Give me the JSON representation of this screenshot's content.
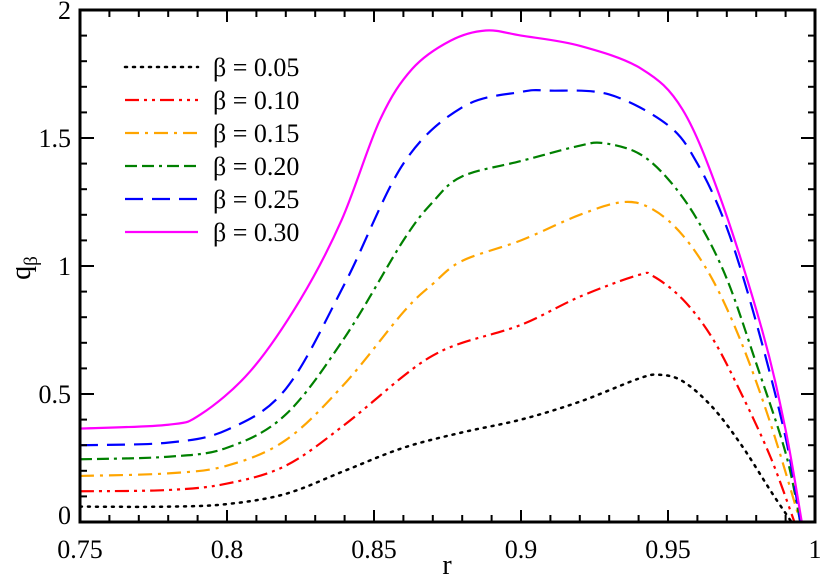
{
  "chart_data": {
    "type": "line",
    "title": "",
    "xlabel": "r",
    "ylabel": "q",
    "ylabel_subscript": "β",
    "xlim": [
      0.75,
      1.0
    ],
    "ylim": [
      0,
      2
    ],
    "xticks": [
      0.75,
      0.8,
      0.85,
      0.9,
      0.95,
      1
    ],
    "xtick_labels": [
      "0.75",
      "0.8",
      "0.85",
      "0.9",
      "0.95",
      "1"
    ],
    "yticks": [
      0,
      0.5,
      1,
      1.5,
      2
    ],
    "ytick_labels": [
      "0",
      "0.5",
      "1",
      "1.5",
      "2"
    ],
    "x_minor_step": 0.01,
    "y_minor_step": 0.1,
    "grid": false,
    "legend_placement": "top-left",
    "series": [
      {
        "name": "β = 0.05",
        "color": "#000000",
        "style": "dotted",
        "x": [
          0.75,
          0.78,
          0.8,
          0.82,
          0.84,
          0.86,
          0.88,
          0.9,
          0.92,
          0.94,
          0.947,
          0.955,
          0.965,
          0.975,
          0.985,
          0.992
        ],
        "y": [
          0.06,
          0.06,
          0.07,
          0.11,
          0.2,
          0.29,
          0.35,
          0.4,
          0.47,
          0.56,
          0.575,
          0.55,
          0.45,
          0.3,
          0.12,
          0
        ]
      },
      {
        "name": "β = 0.10",
        "color": "#ff0000",
        "style": "dash-dot-dot",
        "x": [
          0.75,
          0.78,
          0.8,
          0.82,
          0.84,
          0.86,
          0.87,
          0.88,
          0.9,
          0.92,
          0.94,
          0.945,
          0.955,
          0.965,
          0.975,
          0.985,
          0.993
        ],
        "y": [
          0.12,
          0.125,
          0.15,
          0.22,
          0.38,
          0.57,
          0.65,
          0.7,
          0.77,
          0.88,
          0.965,
          0.96,
          0.87,
          0.72,
          0.5,
          0.25,
          0
        ]
      },
      {
        "name": "β = 0.15",
        "color": "#ffa500",
        "style": "dash-dot",
        "x": [
          0.75,
          0.78,
          0.8,
          0.82,
          0.84,
          0.86,
          0.87,
          0.88,
          0.9,
          0.92,
          0.935,
          0.945,
          0.955,
          0.965,
          0.975,
          0.985,
          0.995
        ],
        "y": [
          0.18,
          0.19,
          0.22,
          0.32,
          0.54,
          0.82,
          0.93,
          1.02,
          1.1,
          1.2,
          1.25,
          1.22,
          1.12,
          0.95,
          0.7,
          0.38,
          0
        ]
      },
      {
        "name": "β = 0.20",
        "color": "#008000",
        "style": "dash-dash-dot",
        "x": [
          0.75,
          0.78,
          0.8,
          0.82,
          0.84,
          0.86,
          0.87,
          0.88,
          0.9,
          0.92,
          0.928,
          0.94,
          0.95,
          0.96,
          0.97,
          0.98,
          0.99,
          0.995
        ],
        "y": [
          0.245,
          0.255,
          0.29,
          0.42,
          0.72,
          1.1,
          1.25,
          1.35,
          1.41,
          1.47,
          1.48,
          1.44,
          1.34,
          1.18,
          0.95,
          0.62,
          0.27,
          0
        ]
      },
      {
        "name": "β = 0.25",
        "color": "#0000ff",
        "style": "dashed",
        "x": [
          0.75,
          0.78,
          0.8,
          0.82,
          0.84,
          0.86,
          0.88,
          0.9,
          0.91,
          0.93,
          0.95,
          0.96,
          0.97,
          0.98,
          0.99,
          0.995
        ],
        "y": [
          0.3,
          0.31,
          0.36,
          0.52,
          0.93,
          1.4,
          1.62,
          1.68,
          1.685,
          1.67,
          1.55,
          1.4,
          1.15,
          0.78,
          0.33,
          0
        ]
      },
      {
        "name": "β = 0.30",
        "color": "#ff00ff",
        "style": "solid",
        "x": [
          0.75,
          0.78,
          0.791,
          0.808,
          0.825,
          0.839,
          0.852,
          0.863,
          0.876,
          0.888,
          0.9,
          0.92,
          0.941,
          0.955,
          0.968,
          0.982,
          0.99,
          0.9955
        ],
        "y": [
          0.365,
          0.38,
          0.42,
          0.59,
          0.87,
          1.18,
          1.57,
          1.77,
          1.88,
          1.92,
          1.9,
          1.86,
          1.77,
          1.61,
          1.26,
          0.75,
          0.36,
          0
        ]
      }
    ]
  }
}
